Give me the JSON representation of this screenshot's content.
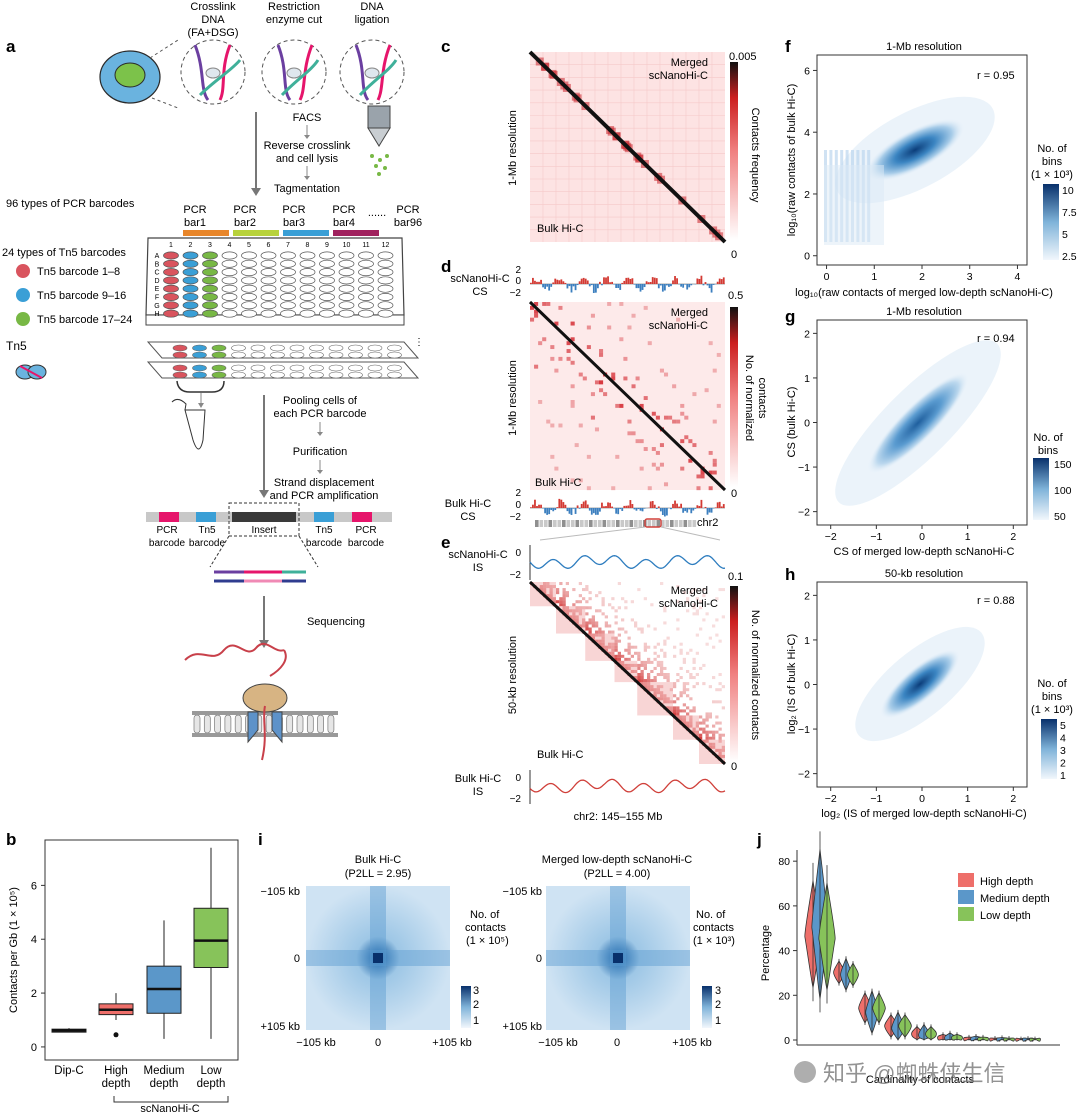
{
  "panels": {
    "a": {
      "label": "a",
      "steps_top": [
        "Crosslink",
        "DNA",
        "(FA+DSG)",
        "Restriction",
        "enzyme cut",
        "DNA",
        "ligation"
      ],
      "facs": "FACS",
      "reverse": [
        "Reverse crosslink",
        "and cell lysis"
      ],
      "tagmentation": "Tagmentation",
      "pcr_types": "96 types of PCR barcodes",
      "tn5_types": "24 types of Tn5 barcodes",
      "pcr_bars": [
        "PCR",
        "bar1",
        "PCR",
        "bar2",
        "PCR",
        "bar3",
        "PCR",
        "bar4",
        "......",
        "PCR",
        "bar96"
      ],
      "plate_rows": [
        "A",
        "B",
        "C",
        "D",
        "E",
        "F",
        "G",
        "H"
      ],
      "plate_cols": [
        "1",
        "2",
        "3",
        "4",
        "5",
        "6",
        "7",
        "8",
        "9",
        "10",
        "11",
        "12"
      ],
      "tn5_legend": [
        {
          "label": "Tn5 barcode 1–8",
          "color": "#d9545e"
        },
        {
          "label": "Tn5 barcode 9–16",
          "color": "#3a9fd6"
        },
        {
          "label": "Tn5 barcode 17–24",
          "color": "#78b845"
        }
      ],
      "tn5": "Tn5",
      "pooling": [
        "Pooling cells of",
        "each PCR barcode"
      ],
      "purification": "Purification",
      "strand": [
        "Strand displacement",
        "and PCR amplification"
      ],
      "construct": [
        "PCR",
        "barcode",
        "Tn5",
        "barcode",
        "Insert",
        "Tn5",
        "barcode",
        "PCR",
        "barcode"
      ],
      "sequencing": "Sequencing",
      "colors": {
        "pcr1": "#e8862a",
        "pcr2": "#b8d23b",
        "pcr3": "#3a9fd6",
        "pcr4": "#a0225e",
        "pink": "#e6156b"
      }
    },
    "b": {
      "label": "b",
      "ylabel": "Contacts per Gb (1 × 10⁵)",
      "yticks": [
        "0",
        "2",
        "4",
        "6"
      ],
      "group_label": "scNanoHi-C"
    },
    "c": {
      "label": "c",
      "ylabel": "1-Mb resolution",
      "top_label": [
        "Merged",
        "scNanoHi-C"
      ],
      "bottom_label": "Bulk Hi-C",
      "cbar_title": "Contacts frequency",
      "cbar_max": "0.005",
      "cbar_min": "0"
    },
    "d": {
      "label": "d",
      "cs_top_label": [
        "scNanoHi-C",
        "CS"
      ],
      "cs_bottom_label": [
        "Bulk Hi-C",
        "CS"
      ],
      "ylabel": "1-Mb resolution",
      "top_label": [
        "Merged",
        "scNanoHi-C"
      ],
      "bottom_label": "Bulk Hi-C",
      "cbar_title": [
        "No. of normalized",
        "contacts"
      ],
      "cbar_max": "0.5",
      "cbar_min": "0",
      "track_ticks": [
        "2",
        "0",
        "−2"
      ],
      "chrom": "chr2"
    },
    "e": {
      "label": "e",
      "is_top_label": [
        "scNanoHi-C",
        "IS"
      ],
      "is_bottom_label": [
        "Bulk Hi-C",
        "IS"
      ],
      "ylabel": "50-kb resolution",
      "top_label": [
        "Merged",
        "scNanoHi-C"
      ],
      "bottom_label": "Bulk Hi-C",
      "cbar_title": "No. of normalized contacts",
      "cbar_max": "0.1",
      "cbar_min": "0",
      "track_ticks": [
        "0",
        "−2"
      ],
      "region": "chr2: 145–155 Mb"
    },
    "f": {
      "label": "f",
      "title": "1-Mb resolution",
      "r": "r = 0.95",
      "xlabel": "log₁₀(raw contacts of merged low-depth scNanoHi-C)",
      "ylabel": "log₁₀(raw contacts of bulk Hi-C)",
      "xticks": [
        "0",
        "1",
        "2",
        "3",
        "4"
      ],
      "yticks": [
        "0",
        "2",
        "4",
        "6"
      ],
      "cbar_title": [
        "No. of",
        "bins",
        "(1 × 10³)"
      ],
      "cbar_ticks": [
        "10",
        "7.5",
        "5",
        "2.5"
      ]
    },
    "g": {
      "label": "g",
      "title": "1-Mb resolution",
      "r": "r = 0.94",
      "xlabel": "CS of merged low-depth scNanoHi-C",
      "ylabel": "CS (bulk Hi-C)",
      "xticks": [
        "−2",
        "−1",
        "0",
        "1",
        "2"
      ],
      "yticks": [
        "2",
        "1",
        "0",
        "−1",
        "−2"
      ],
      "cbar_title": [
        "No. of",
        "bins"
      ],
      "cbar_ticks": [
        "150",
        "100",
        "50"
      ]
    },
    "h": {
      "label": "h",
      "title": "50-kb resolution",
      "r": "r = 0.88",
      "xlabel": "log₂ (IS of merged low-depth scNanoHi-C)",
      "ylabel": "log₂ (IS of bulk Hi-C)",
      "xticks": [
        "−2",
        "−1",
        "0",
        "1",
        "2"
      ],
      "yticks": [
        "2",
        "1",
        "0",
        "−1",
        "−2"
      ],
      "cbar_title": [
        "No. of",
        "bins",
        "(1 × 10³)"
      ],
      "cbar_ticks": [
        "5",
        "4",
        "3",
        "2",
        "1"
      ]
    },
    "i": {
      "label": "i",
      "left_title": [
        "Bulk Hi-C",
        "(P2LL = 2.95)"
      ],
      "right_title": [
        "Merged low-depth scNanoHi-C",
        "(P2LL = 4.00)"
      ],
      "yticks": [
        "−105 kb",
        "0",
        "+105 kb"
      ],
      "xticks": [
        "−105 kb",
        "0",
        "+105 kb"
      ],
      "left_cbar": [
        "No. of",
        "contacts",
        "(1 × 10⁵)"
      ],
      "right_cbar": [
        "No. of",
        "contacts",
        "(1 × 10³)"
      ],
      "cbar_ticks": [
        "3",
        "2",
        "1"
      ]
    },
    "j": {
      "label": "j",
      "ylabel": "Percentage",
      "xlabel": "Cardinality of contacts",
      "yticks": [
        "80",
        "60",
        "40",
        "20",
        "0"
      ],
      "legend": [
        {
          "label": "High depth",
          "color": "#ee6f6a"
        },
        {
          "label": "Medium depth",
          "color": "#5b97c9"
        },
        {
          "label": "Low depth",
          "color": "#87c35a"
        }
      ]
    }
  },
  "watermark": "知乎 @蜘蛛侠生信",
  "chart_data": [
    {
      "type": "box",
      "panel": "b",
      "ylabel": "Contacts per Gb (1 × 10⁵)",
      "ylim": [
        -0.3,
        7.5
      ],
      "categories": [
        "Dip-C",
        "High depth",
        "Medium depth",
        "Low depth"
      ],
      "colors": [
        "#222222",
        "#ee6f6a",
        "#5b97c9",
        "#87c35a"
      ],
      "boxes": [
        {
          "min": 0.55,
          "q1": 0.6,
          "median": 0.62,
          "q3": 0.66,
          "max": 0.7,
          "outliers": []
        },
        {
          "min": 1.0,
          "q1": 1.2,
          "median": 1.38,
          "q3": 1.6,
          "max": 2.0,
          "outliers": [
            0.45
          ]
        },
        {
          "min": 0.3,
          "q1": 1.25,
          "median": 2.15,
          "q3": 3.0,
          "max": 4.7,
          "outliers": []
        },
        {
          "min": 0.3,
          "q1": 2.95,
          "median": 3.95,
          "q3": 5.15,
          "max": 7.4,
          "outliers": []
        }
      ]
    },
    {
      "type": "violin",
      "panel": "j",
      "ylabel": "Percentage",
      "xlabel": "Cardinality of contacts",
      "ylim": [
        0,
        85
      ],
      "series": [
        {
          "name": "High depth",
          "color": "#ee6f6a",
          "medians": [
            46,
            30,
            14,
            6,
            2.5,
            0.8,
            0.3,
            0.15,
            0.1
          ]
        },
        {
          "name": "Medium depth",
          "color": "#5b97c9",
          "medians": [
            50,
            29,
            12,
            5,
            2,
            0.7,
            0.3,
            0.15,
            0.1
          ]
        },
        {
          "name": "Low depth",
          "color": "#87c35a",
          "medians": [
            45,
            29,
            14,
            6,
            2.5,
            0.8,
            0.3,
            0.15,
            0.1
          ]
        }
      ]
    },
    {
      "type": "heatmap",
      "panel": "f",
      "title": "1-Mb resolution",
      "xlim": [
        -0.2,
        4.2
      ],
      "ylim": [
        -0.3,
        6.5
      ],
      "correlation": 0.95
    },
    {
      "type": "heatmap",
      "panel": "g",
      "title": "1-Mb resolution",
      "xlim": [
        -2.3,
        2.3
      ],
      "ylim": [
        -2.3,
        2.3
      ],
      "correlation": 0.94
    },
    {
      "type": "heatmap",
      "panel": "h",
      "title": "50-kb resolution",
      "xlim": [
        -2.3,
        2.3
      ],
      "ylim": [
        -2.3,
        2.3
      ],
      "correlation": 0.88
    }
  ]
}
